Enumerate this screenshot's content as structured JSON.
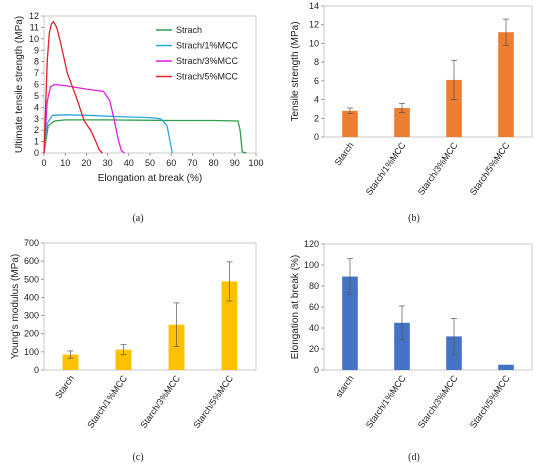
{
  "chart_data": [
    {
      "panel": "(a)",
      "type": "line",
      "xlabel": "Elongation at break (%)",
      "ylabel": "Ultimate tensile strength (MPa)",
      "xlim": [
        0,
        100
      ],
      "ylim": [
        0,
        12
      ],
      "xticks": [
        "0",
        "10",
        "20",
        "30",
        "40",
        "50",
        "60",
        "70",
        "80",
        "90",
        "100"
      ],
      "yticks": [
        "0",
        "1",
        "2",
        "3",
        "4",
        "5",
        "6",
        "7",
        "8",
        "9",
        "10",
        "11",
        "12"
      ],
      "legend_position": "top-right",
      "series": [
        {
          "name": "Strach",
          "color": "#2ea04a",
          "x": [
            0,
            2,
            5,
            10,
            30,
            60,
            80,
            91.5,
            92.5,
            93.5,
            95.5
          ],
          "y": [
            0,
            2.4,
            2.8,
            2.9,
            2.9,
            2.85,
            2.85,
            2.8,
            2.0,
            0.1,
            0
          ]
        },
        {
          "name": "Strach/1%MCC",
          "color": "#2aa9e0",
          "x": [
            0,
            1.5,
            4,
            10,
            20,
            40,
            50,
            55,
            58,
            59.5,
            60.5
          ],
          "y": [
            0,
            2.6,
            3.3,
            3.35,
            3.3,
            3.15,
            3.1,
            3.0,
            2.4,
            1.0,
            0
          ]
        },
        {
          "name": "Strach/3%MCC",
          "color": "#e020e0",
          "x": [
            0,
            1.5,
            3,
            5,
            10,
            20,
            28,
            31,
            33,
            35,
            36.5,
            38
          ],
          "y": [
            0,
            4.5,
            5.8,
            6.0,
            5.9,
            5.6,
            5.4,
            4.6,
            3.0,
            1.2,
            0.2,
            0
          ]
        },
        {
          "name": "Strach/5%MCC",
          "color": "#e0202a",
          "x": [
            0,
            1.5,
            2.5,
            3.5,
            4.5,
            6,
            8,
            11,
            15,
            19,
            22,
            24,
            26,
            27.5
          ],
          "y": [
            0,
            8.0,
            10.5,
            11.3,
            11.5,
            11.0,
            9.5,
            7.0,
            5.0,
            2.8,
            2.0,
            1.2,
            0.3,
            0
          ]
        }
      ]
    },
    {
      "panel": "(b)",
      "type": "bar",
      "ylabel": "Tensile strength (MPa)",
      "ylim": [
        0,
        14
      ],
      "yticks": [
        "0",
        "2",
        "4",
        "6",
        "8",
        "10",
        "12",
        "14"
      ],
      "categories": [
        "Starch",
        "Starch/1%MCC",
        "Starch/3%MCC",
        "Starch/5%MCC"
      ],
      "values": [
        2.8,
        3.1,
        6.1,
        11.2
      ],
      "errors": [
        0.3,
        0.5,
        2.1,
        1.4
      ],
      "color": "#ed7d31"
    },
    {
      "panel": "(c)",
      "type": "bar",
      "ylabel": "Young's modulus (MPa)",
      "ylim": [
        0,
        700
      ],
      "yticks": [
        "0",
        "100",
        "200",
        "300",
        "400",
        "500",
        "600",
        "700"
      ],
      "categories": [
        "Starch",
        "Starch/1%MCC",
        "Starch/3%MCC",
        "Starch/5%MCC"
      ],
      "values": [
        85,
        112,
        250,
        488
      ],
      "errors": [
        20,
        28,
        120,
        108
      ],
      "color": "#ffc000"
    },
    {
      "panel": "(d)",
      "type": "bar",
      "ylabel": "Elongation at break (%)",
      "ylim": [
        0,
        120
      ],
      "yticks": [
        "0",
        "20",
        "40",
        "60",
        "80",
        "100",
        "120"
      ],
      "categories": [
        "starch",
        "Starch/1%MCC",
        "Starch/3%MCC",
        "Starch/5%MCC"
      ],
      "values": [
        89,
        45,
        32,
        5
      ],
      "errors": [
        17,
        16,
        17,
        0
      ],
      "color": "#4472c4"
    }
  ]
}
